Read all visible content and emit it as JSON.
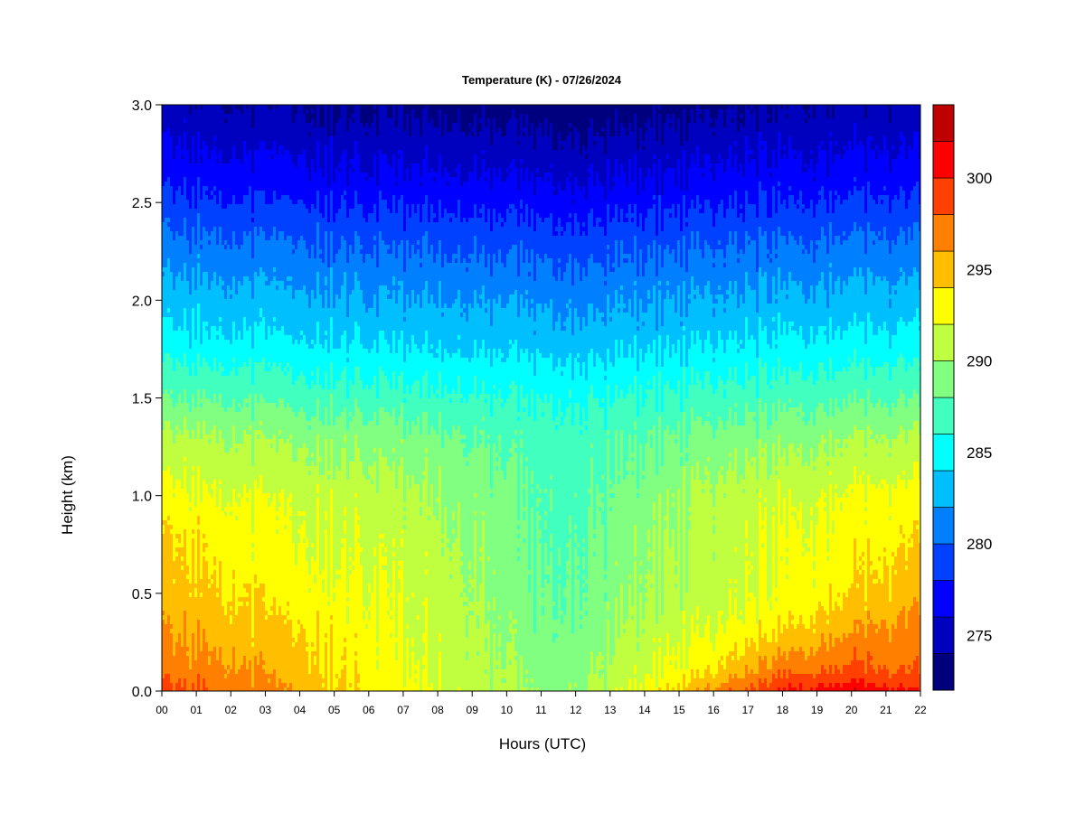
{
  "chart_data": {
    "type": "heatmap",
    "title": "Temperature (K) - 07/26/2024",
    "xlabel": "Hours (UTC)",
    "ylabel": "Height (km)",
    "xlim": [
      0,
      22
    ],
    "ylim": [
      0.0,
      3.0
    ],
    "x_ticks": [
      "00",
      "01",
      "02",
      "03",
      "04",
      "05",
      "06",
      "07",
      "08",
      "09",
      "10",
      "11",
      "12",
      "13",
      "14",
      "15",
      "16",
      "17",
      "18",
      "19",
      "20",
      "21",
      "22"
    ],
    "y_ticks": [
      "0.0",
      "0.5",
      "1.0",
      "1.5",
      "2.0",
      "2.5",
      "3.0"
    ],
    "colorbar": {
      "label": "",
      "range": [
        272,
        304
      ],
      "ticks": [
        "275",
        "280",
        "285",
        "290",
        "295",
        "300"
      ],
      "levels": [
        272,
        274,
        276,
        278,
        280,
        282,
        284,
        286,
        288,
        290,
        292,
        294,
        296,
        298,
        300,
        302,
        304
      ],
      "colors": [
        "#00007F",
        "#0000BF",
        "#0000FF",
        "#0040FF",
        "#0080FF",
        "#00BFFF",
        "#00FFFF",
        "#40FFBF",
        "#80FF80",
        "#BFFF40",
        "#FFFF00",
        "#FFBF00",
        "#FF8000",
        "#FF4000",
        "#FF0000",
        "#BF0000",
        "#7F0000"
      ]
    },
    "hours": [
      0,
      2,
      4,
      6,
      8,
      10,
      11,
      12,
      14,
      16,
      18,
      20,
      22
    ],
    "heights": [
      0.0,
      0.1,
      0.3,
      0.5,
      0.8,
      1.0,
      1.3,
      1.5,
      1.8,
      2.0,
      2.3,
      2.6,
      3.0
    ],
    "temperature": [
      [
        299.0,
        297.5,
        295.5,
        293.5,
        292.0,
        290.5,
        289.5,
        289.7,
        292.5,
        296.5,
        300.0,
        301.5,
        300.0
      ],
      [
        297.0,
        296.5,
        295.0,
        293.0,
        291.5,
        290.0,
        289.0,
        289.3,
        291.5,
        294.0,
        297.5,
        298.5,
        298.0
      ],
      [
        296.0,
        295.0,
        294.0,
        292.7,
        291.2,
        289.6,
        288.5,
        288.8,
        290.8,
        292.0,
        294.0,
        296.0,
        297.0
      ],
      [
        295.0,
        294.0,
        293.0,
        292.3,
        291.0,
        289.3,
        288.0,
        288.3,
        290.0,
        291.0,
        292.5,
        294.0,
        295.5
      ],
      [
        294.0,
        293.0,
        292.0,
        291.5,
        290.5,
        289.0,
        287.5,
        287.8,
        289.5,
        290.8,
        292.0,
        293.0,
        294.0
      ],
      [
        292.5,
        292.0,
        291.5,
        291.0,
        290.0,
        288.5,
        287.5,
        287.5,
        289.0,
        290.5,
        291.5,
        292.3,
        292.8
      ],
      [
        290.5,
        290.0,
        289.5,
        289.2,
        288.5,
        287.5,
        287.0,
        287.0,
        287.8,
        288.6,
        289.3,
        290.0,
        290.5
      ],
      [
        288.0,
        287.8,
        287.3,
        287.0,
        286.5,
        286.0,
        285.8,
        285.8,
        286.3,
        286.8,
        287.2,
        287.7,
        288.0
      ],
      [
        284.5,
        284.3,
        284.0,
        283.8,
        283.5,
        283.3,
        283.0,
        283.0,
        283.3,
        283.8,
        284.2,
        284.5,
        284.8
      ],
      [
        283.0,
        282.8,
        282.5,
        282.2,
        282.0,
        281.8,
        281.5,
        281.5,
        281.8,
        282.2,
        282.5,
        282.8,
        283.0
      ],
      [
        280.5,
        280.2,
        280.0,
        279.7,
        279.5,
        279.3,
        279.0,
        279.0,
        279.3,
        279.7,
        280.0,
        280.3,
        280.5
      ],
      [
        277.5,
        277.2,
        277.0,
        276.7,
        276.5,
        276.3,
        276.0,
        276.0,
        276.3,
        276.7,
        277.0,
        277.3,
        277.5
      ],
      [
        274.5,
        274.0,
        273.8,
        273.5,
        273.3,
        273.0,
        272.8,
        272.8,
        273.0,
        273.5,
        274.0,
        274.3,
        274.5
      ]
    ]
  }
}
